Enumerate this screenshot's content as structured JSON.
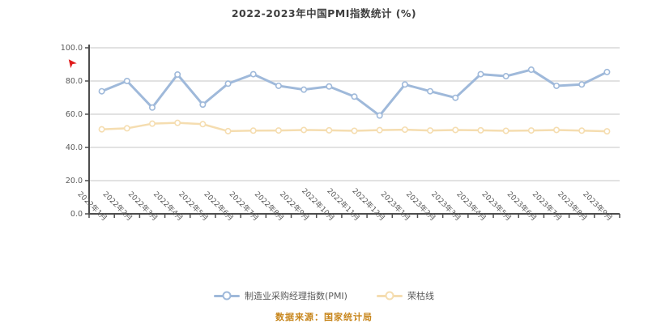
{
  "title": {
    "text": "2022-2023年中国PMI指数统计 (%)"
  },
  "source": {
    "text": "数据来源：国家统计局"
  },
  "annotations": {
    "red_arrow_icon": "red-arrow-marker"
  },
  "colors": {
    "pmi_line": "#9fb9da",
    "threshold_line": "#f5ddb0",
    "marker_fill": "#ffffff",
    "grid": "#d9d9d9",
    "axis": "#4d4d4d",
    "axis_text": "#595959",
    "title_text": "#3f3f3f",
    "legend_text": "#595959",
    "source_text": "#c8871e",
    "red_arrow": "#e01b1b",
    "background": "#ffffff"
  },
  "chart_data": {
    "type": "line",
    "title": "2022-2023年中国PMI指数统计 (%)",
    "xlabel": "",
    "ylabel": "",
    "ylim": [
      0,
      100
    ],
    "ytick_values": [
      100,
      80,
      60,
      40,
      20,
      0
    ],
    "ytick_labels": [
      "100.0",
      "80.0",
      "60.0",
      "40.0",
      "20.0",
      "0.0"
    ],
    "grid": true,
    "legend_position": "bottom",
    "x_label_rotation_deg": 45,
    "categories": [
      "2022年1月",
      "2022年2月",
      "2022年3月",
      "2022年4月",
      "2022年5月",
      "2022年6月",
      "2022年7月",
      "2022年8月",
      "2022年9月",
      "2022年10月",
      "2022年11月",
      "2022年12月",
      "2023年1月",
      "2023年2月",
      "2023年3月",
      "2023年4月",
      "2023年5月",
      "2023年6月",
      "2023年7月",
      "2023年8月",
      "2023年9月"
    ],
    "series": [
      {
        "name": "制造业采购经理指数(PMI)",
        "color": "#9fb9da",
        "marker": "circle",
        "values": [
          73.8,
          80.0,
          64.0,
          83.9,
          65.8,
          78.4,
          84.1,
          77.1,
          74.8,
          76.7,
          70.6,
          59.2,
          77.9,
          73.8,
          69.9,
          84.1,
          82.9,
          86.8,
          77.1,
          77.9,
          85.4
        ]
      },
      {
        "name": "荣枯线",
        "color": "#f5ddb0",
        "marker": "circle",
        "values": [
          50.9,
          51.5,
          54.3,
          54.8,
          54.0,
          49.8,
          50.1,
          50.2,
          50.5,
          50.3,
          50.0,
          50.4,
          50.7,
          50.2,
          50.5,
          50.3,
          50.0,
          50.2,
          50.5,
          50.1,
          49.7
        ]
      }
    ]
  }
}
